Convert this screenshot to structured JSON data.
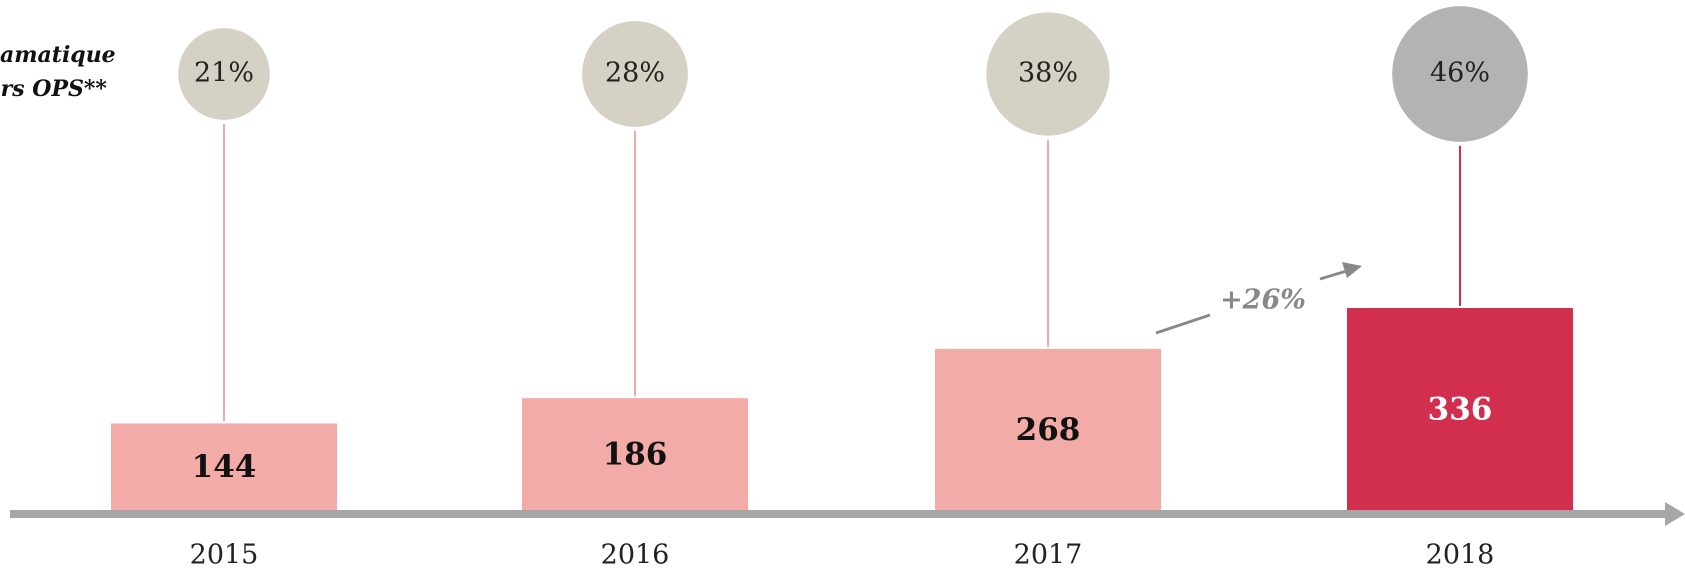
{
  "chart_data": {
    "type": "bar",
    "side_label": [
      "amatique",
      "hors OPS**"
    ],
    "categories": [
      "2015",
      "2016",
      "2017",
      "2018"
    ],
    "values": [
      144,
      186,
      268,
      336
    ],
    "colors": [
      "#f2aba6",
      "#f2aba6",
      "#f2aba6",
      "#d22e4e"
    ],
    "value_label_colors": [
      "#111111",
      "#111111",
      "#111111",
      "#ffffff"
    ],
    "shares": [
      21,
      28,
      38,
      46
    ],
    "share_labels": [
      "21%",
      "28%",
      "38%",
      "46%"
    ],
    "share_colors": [
      "#d5d1c4",
      "#d5d1c4",
      "#d5d1c4",
      "#b3b3b3"
    ],
    "annotation": "+26%"
  }
}
